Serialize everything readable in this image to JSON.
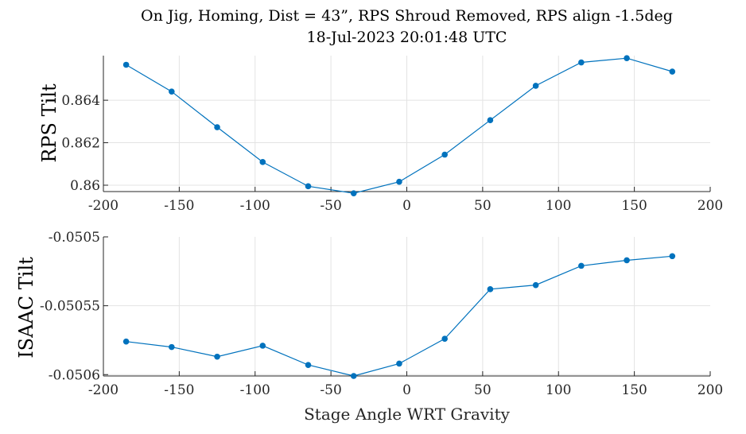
{
  "figure": {
    "title_line1": "On Jig, Homing, Dist = 43”, RPS Shroud Removed, RPS align -1.5deg",
    "title_line2": "18-Jul-2023 20:01:48 UTC",
    "xlabel": "Stage Angle WRT Gravity"
  },
  "chart_data": [
    {
      "type": "line",
      "ylabel": "RPS Tilt",
      "xlim": [
        -200,
        200
      ],
      "ylim": [
        0.8597,
        0.8661
      ],
      "xticks": [
        -200,
        -150,
        -100,
        -50,
        0,
        50,
        100,
        150,
        200
      ],
      "xtick_labels": [
        "-200",
        "-150",
        "-100",
        "-50",
        "0",
        "50",
        "100",
        "150",
        "200"
      ],
      "yticks": [
        0.86,
        0.862,
        0.864
      ],
      "ytick_labels": [
        "0.86",
        "0.862",
        "0.864"
      ],
      "grid": true,
      "color": "#0072BD",
      "x": [
        -185,
        -155,
        -125,
        -95,
        -65,
        -35,
        -5,
        25,
        55,
        85,
        115,
        145,
        175
      ],
      "y": [
        0.86567,
        0.86441,
        0.86273,
        0.86109,
        0.85995,
        0.85962,
        0.86016,
        0.86144,
        0.86306,
        0.86468,
        0.86578,
        0.86598,
        0.86535
      ]
    },
    {
      "type": "line",
      "ylabel": "ISAAC Tilt",
      "xlim": [
        -200,
        200
      ],
      "ylim": [
        -0.050601,
        -0.0505
      ],
      "xticks": [
        -200,
        -150,
        -100,
        -50,
        0,
        50,
        100,
        150,
        200
      ],
      "xtick_labels": [
        "-200",
        "-150",
        "-100",
        "-50",
        "0",
        "50",
        "100",
        "150",
        "200"
      ],
      "yticks": [
        -0.0506,
        -0.05055,
        -0.0505
      ],
      "ytick_labels": [
        "-0.0506",
        "-0.05055",
        "-0.0505"
      ],
      "grid": true,
      "color": "#0072BD",
      "x": [
        -185,
        -155,
        -125,
        -95,
        -65,
        -35,
        -5,
        25,
        55,
        85,
        115,
        145,
        175
      ],
      "y": [
        -0.050576,
        -0.05058,
        -0.050587,
        -0.050579,
        -0.050593,
        -0.050601,
        -0.050592,
        -0.050574,
        -0.050538,
        -0.050535,
        -0.050521,
        -0.050517,
        -0.050514
      ]
    }
  ]
}
